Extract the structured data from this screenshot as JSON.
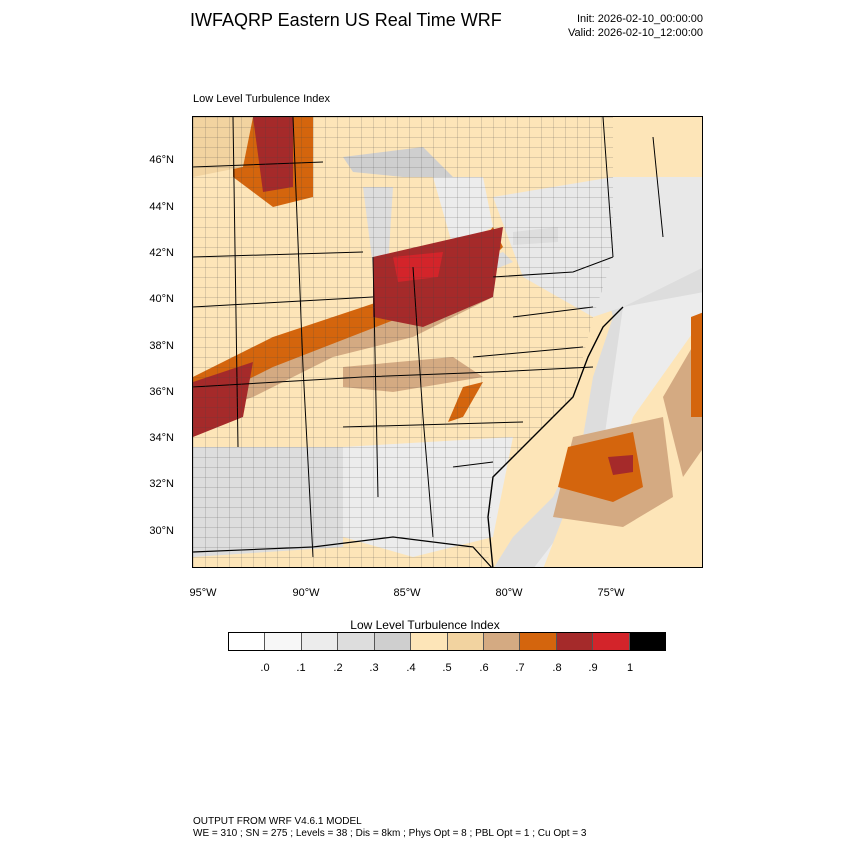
{
  "header": {
    "title": "IWFAQRP Eastern US Real Time WRF",
    "init": "Init: 2026-02-10_00:00:00",
    "valid": "Valid: 2026-02-10_12:00:00"
  },
  "plot": {
    "title": "Low Level Turbulence Index",
    "lat_labels": [
      "46°N",
      "44°N",
      "42°N",
      "40°N",
      "38°N",
      "36°N",
      "34°N",
      "32°N",
      "30°N"
    ],
    "lon_labels": [
      "95°W",
      "90°W",
      "85°W",
      "80°W",
      "75°W"
    ]
  },
  "colorbar": {
    "title": "Low Level Turbulence Index",
    "colors": [
      "#ffffff",
      "#f7f7f7",
      "#ececec",
      "#dddddd",
      "#cfcfcf",
      "#fde5b8",
      "#f2d3a0",
      "#d4aa82",
      "#d4650d",
      "#a52a2a",
      "#d3242a",
      "#000000"
    ],
    "labels": [
      ".0",
      ".1",
      ".2",
      ".3",
      ".4",
      ".5",
      ".6",
      ".7",
      ".8",
      ".9",
      "1"
    ]
  },
  "footer": {
    "line1": "OUTPUT FROM WRF V4.6.1 MODEL",
    "line2": "WE = 310 ; SN = 275 ; Levels = 38 ; Dis = 8km ; Phys Opt = 8 ; PBL Opt = 1 ; Cu Opt = 3"
  }
}
